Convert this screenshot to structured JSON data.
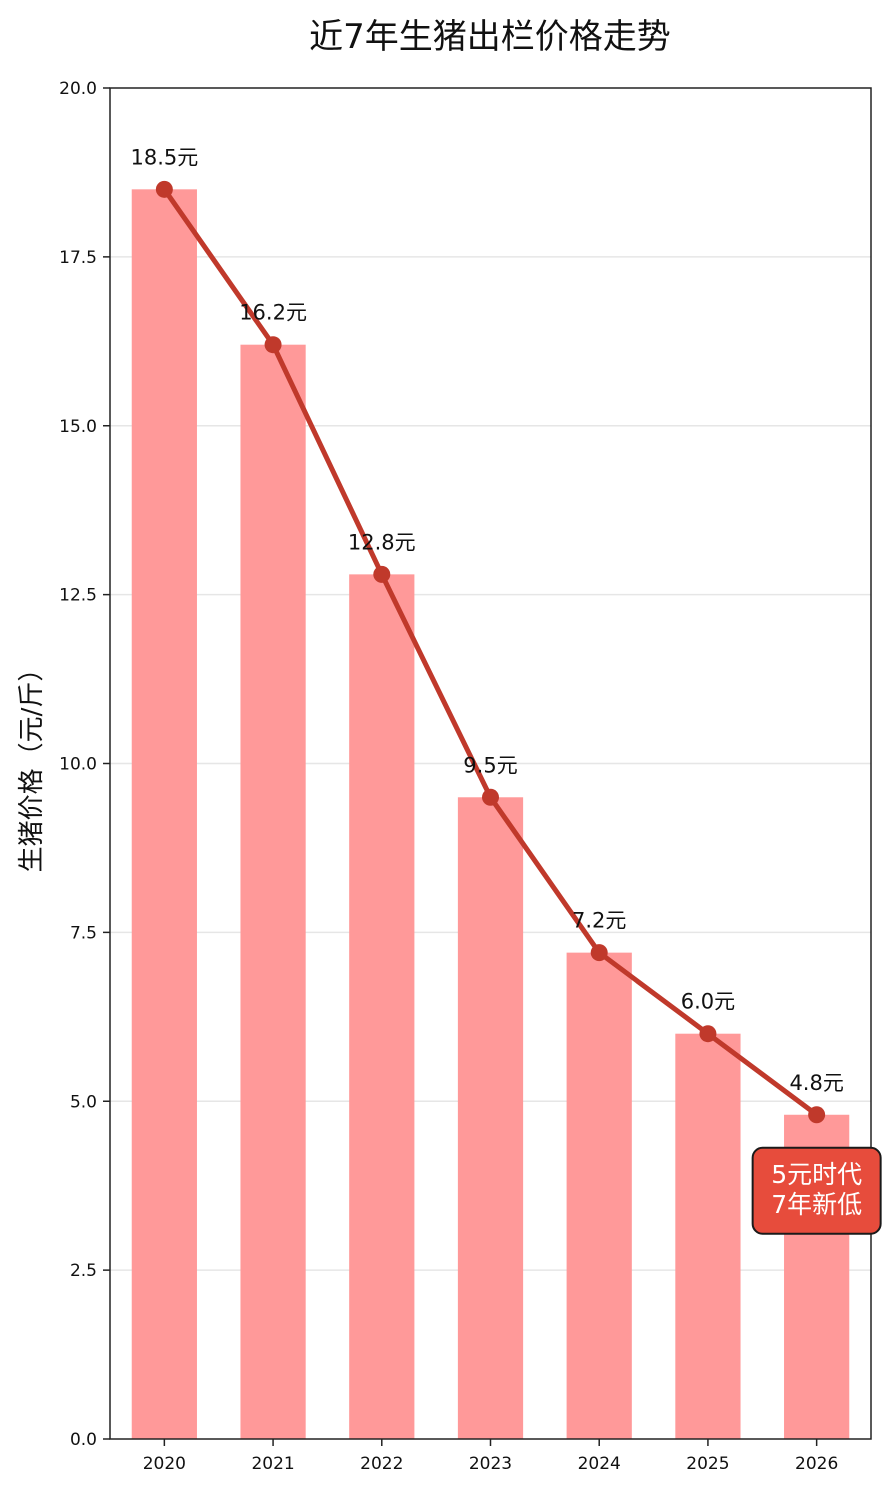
{
  "chart_data": {
    "type": "bar",
    "title": "近7年生猪出栏价格走势",
    "xlabel": "",
    "ylabel": "生猪价格（元/斤）",
    "categories": [
      "2020",
      "2021",
      "2022",
      "2023",
      "2024",
      "2025",
      "2026"
    ],
    "series": [
      {
        "name": "bars",
        "type": "bar",
        "values": [
          18.5,
          16.2,
          12.8,
          9.5,
          7.2,
          6.0,
          4.8
        ]
      },
      {
        "name": "line",
        "type": "line",
        "values": [
          18.5,
          16.2,
          12.8,
          9.5,
          7.2,
          6.0,
          4.8
        ]
      }
    ],
    "data_labels": [
      "18.5元",
      "16.2元",
      "12.8元",
      "9.5元",
      "7.2元",
      "6.0元",
      "4.8元"
    ],
    "ylim": [
      0,
      20
    ],
    "yticks": [
      "0.0",
      "2.5",
      "5.0",
      "7.5",
      "10.0",
      "12.5",
      "15.0",
      "17.5",
      "20.0"
    ],
    "grid": true,
    "annotation": {
      "category": "2026",
      "lines": [
        "5元时代",
        "7年新低"
      ]
    },
    "colors": {
      "bar": "#ff9999",
      "line": "#c0392b",
      "annotation_bg": "#e74c3c",
      "annotation_border": "#1a1a1a",
      "annotation_text": "#ffffff",
      "grid": "#e6e6e6",
      "axis": "#222222",
      "text": "#111111"
    }
  }
}
